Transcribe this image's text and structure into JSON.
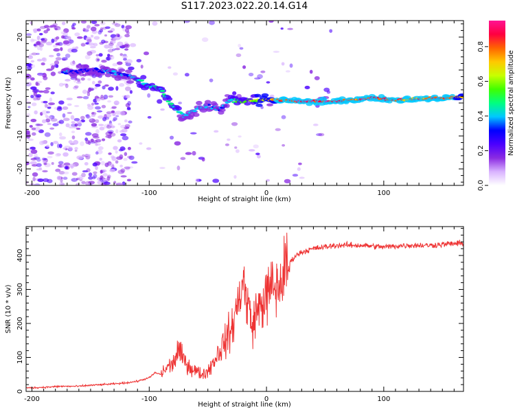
{
  "title": "S117.2023.022.20.14.G14",
  "chart_data": [
    {
      "type": "heatmap",
      "title": "",
      "xlabel": "Height of straight line (km)",
      "ylabel": "Frequency (Hz)",
      "xlim": [
        -205,
        168
      ],
      "ylim": [
        -25,
        25
      ],
      "x_ticks": [
        -200,
        -100,
        0,
        100
      ],
      "y_ticks": [
        -20,
        -10,
        0,
        10,
        20
      ],
      "colorbar": {
        "label": "Normalized spectral amplitude",
        "range": [
          0,
          0.95
        ],
        "ticks": [
          0.0,
          0.2,
          0.4,
          0.6,
          0.8
        ],
        "colors": [
          "#ffffff",
          "#d9b3ff",
          "#8a2be2",
          "#4b00ff",
          "#0000ff",
          "#00c8ff",
          "#00ff80",
          "#40ff00",
          "#c8ff00",
          "#ffc800",
          "#ff6400",
          "#ff0040",
          "#ff1493"
        ]
      },
      "ridge": [
        {
          "x": -173,
          "y": 9.5,
          "a": 0.4
        },
        {
          "x": -150,
          "y": 10,
          "a": 0.3
        },
        {
          "x": -135,
          "y": 9.5,
          "a": 0.4
        },
        {
          "x": -120,
          "y": 8.5,
          "a": 0.35
        },
        {
          "x": -110,
          "y": 7,
          "a": 0.45
        },
        {
          "x": -100,
          "y": 5,
          "a": 0.5
        },
        {
          "x": -90,
          "y": 4,
          "a": 0.45
        },
        {
          "x": -80,
          "y": -1,
          "a": 0.5
        },
        {
          "x": -70,
          "y": -4,
          "a": 0.4
        },
        {
          "x": -60,
          "y": -2,
          "a": 0.4
        },
        {
          "x": -50,
          "y": -1,
          "a": 0.4
        },
        {
          "x": -40,
          "y": -2,
          "a": 0.35
        },
        {
          "x": -30,
          "y": 1,
          "a": 0.45
        },
        {
          "x": -20,
          "y": 0.5,
          "a": 0.55
        },
        {
          "x": -10,
          "y": 1,
          "a": 0.6
        },
        {
          "x": 0,
          "y": 1,
          "a": 0.75
        },
        {
          "x": 10,
          "y": 1,
          "a": 0.8
        },
        {
          "x": 25,
          "y": 0.5,
          "a": 0.9
        },
        {
          "x": 40,
          "y": 0.5,
          "a": 0.95
        },
        {
          "x": 60,
          "y": 0.5,
          "a": 0.9
        },
        {
          "x": 75,
          "y": 1,
          "a": 0.85
        },
        {
          "x": 90,
          "y": 1.5,
          "a": 0.9
        },
        {
          "x": 105,
          "y": 1,
          "a": 0.9
        },
        {
          "x": 120,
          "y": 1,
          "a": 0.8
        },
        {
          "x": 140,
          "y": 1.5,
          "a": 0.85
        },
        {
          "x": 155,
          "y": 1.5,
          "a": 0.9
        },
        {
          "x": 168,
          "y": 2,
          "a": 0.7
        }
      ]
    },
    {
      "type": "line",
      "title": "",
      "xlabel": "Height of straight line (km)",
      "ylabel": "SNR (10 * v/v)",
      "xlim": [
        -205,
        168
      ],
      "ylim": [
        0,
        485
      ],
      "x_ticks": [
        -200,
        -100,
        0,
        100
      ],
      "y_ticks": [
        0,
        100,
        200,
        300,
        400
      ],
      "color": "#ee3333",
      "series": [
        {
          "x": [
            -205,
            -190,
            -175,
            -160,
            -150,
            -140,
            -130,
            -120,
            -110,
            -100,
            -95,
            -90,
            -85,
            -80,
            -75,
            -70,
            -65,
            -60,
            -55,
            -50,
            -45,
            -40,
            -35,
            -30,
            -25,
            -22,
            -20,
            -18,
            -15,
            -12,
            -10,
            -5,
            0,
            5,
            10,
            15,
            20,
            25,
            30,
            35,
            40,
            50,
            60,
            80,
            100,
            120,
            140,
            160,
            168
          ],
          "y": [
            10,
            12,
            15,
            15,
            18,
            20,
            22,
            25,
            30,
            40,
            55,
            50,
            70,
            80,
            120,
            90,
            70,
            60,
            50,
            60,
            90,
            120,
            150,
            180,
            250,
            300,
            330,
            280,
            250,
            180,
            230,
            250,
            280,
            310,
            300,
            350,
            380,
            400,
            410,
            415,
            420,
            425,
            430,
            430,
            425,
            430,
            430,
            435,
            435
          ]
        }
      ]
    }
  ]
}
